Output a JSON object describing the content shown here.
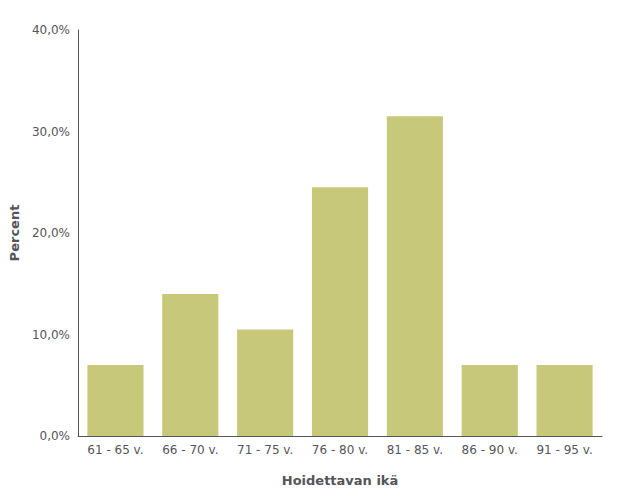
{
  "chart_data": {
    "type": "bar",
    "categories": [
      "61 - 65 v.",
      "66 - 70 v.",
      "71 - 75 v.",
      "76 - 80 v.",
      "81 - 85 v.",
      "86 - 90 v.",
      "91 - 95 v."
    ],
    "values": [
      7.0,
      14.0,
      10.5,
      24.5,
      31.5,
      7.0,
      7.0
    ],
    "color": "#c8c87a",
    "xlabel": "Hoidettavan ikä",
    "ylabel": "Percent",
    "ylim": [
      0,
      40
    ],
    "yticks": [
      {
        "value": 0,
        "label": "0,0%"
      },
      {
        "value": 10,
        "label": "10,0%"
      },
      {
        "value": 20,
        "label": "20,0%"
      },
      {
        "value": 30,
        "label": "30,0%"
      },
      {
        "value": 40,
        "label": "40,0%"
      }
    ],
    "grid": false
  }
}
